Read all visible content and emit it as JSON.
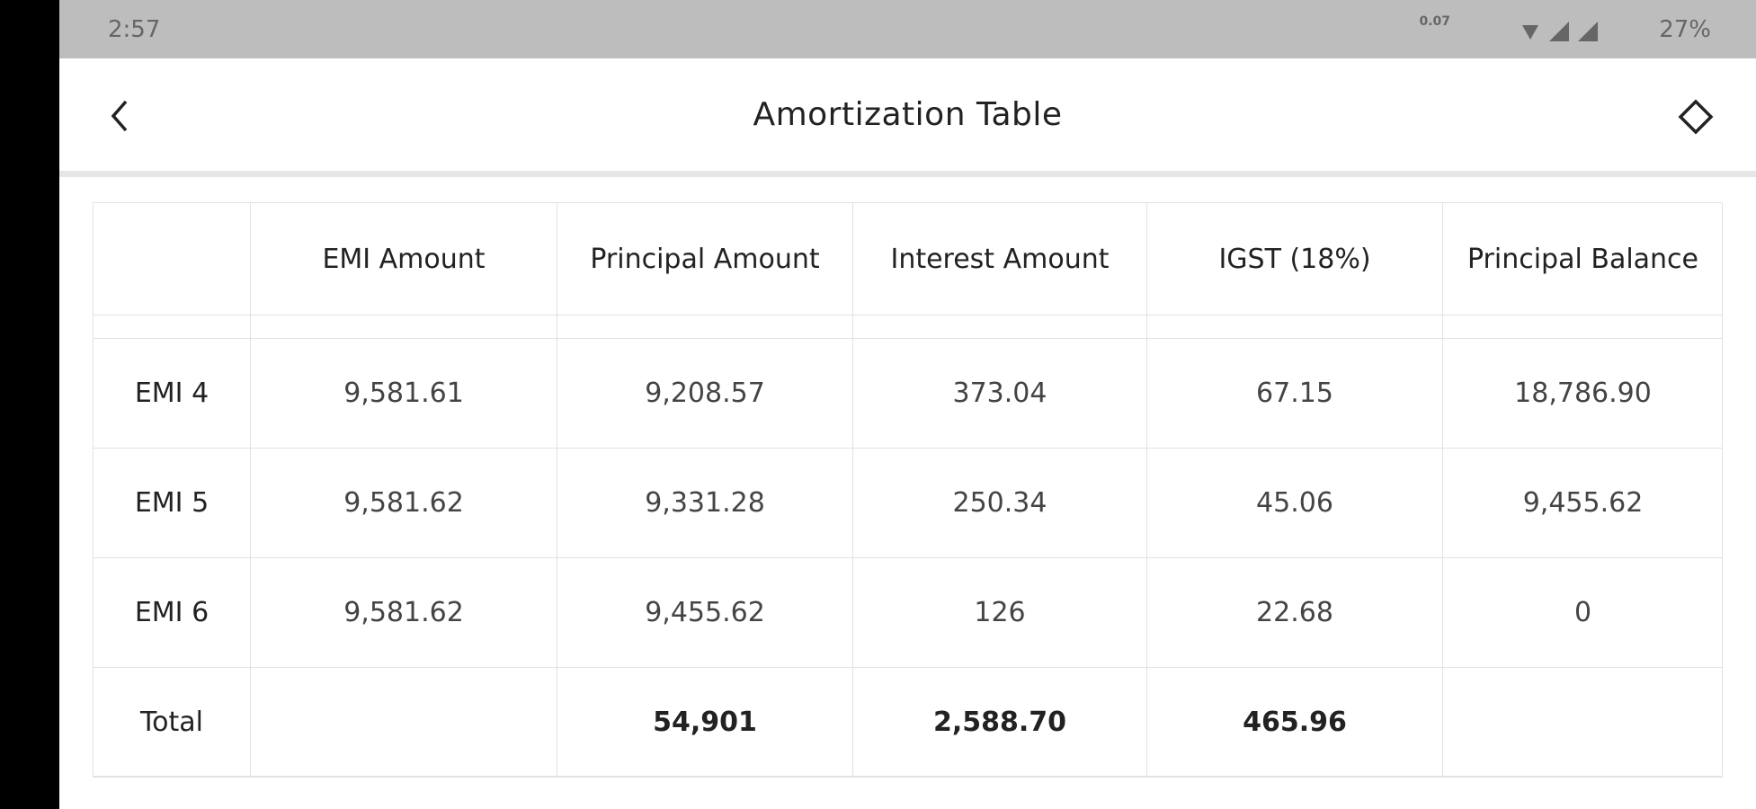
{
  "status_bar": {
    "time": "2:57",
    "network_speed": "0.07",
    "battery": "27%"
  },
  "header": {
    "title": "Amortization Table"
  },
  "table": {
    "columns": [
      "EMI Amount",
      "Principal Amount",
      "Interest Amount",
      "IGST (18%)",
      "Principal Balance"
    ],
    "rows": [
      [
        "EMI 4",
        "9,581.61",
        "9,208.57",
        "373.04",
        "67.15",
        "18,786.90"
      ],
      [
        "EMI 5",
        "9,581.62",
        "9,331.28",
        "250.34",
        "45.06",
        "9,455.62"
      ],
      [
        "EMI 6",
        "9,581.62",
        "9,455.62",
        "126",
        "22.68",
        "0"
      ]
    ],
    "total": {
      "label": "Total",
      "principal": "54,901",
      "interest": "2,588.70",
      "igst": "465.96"
    }
  }
}
